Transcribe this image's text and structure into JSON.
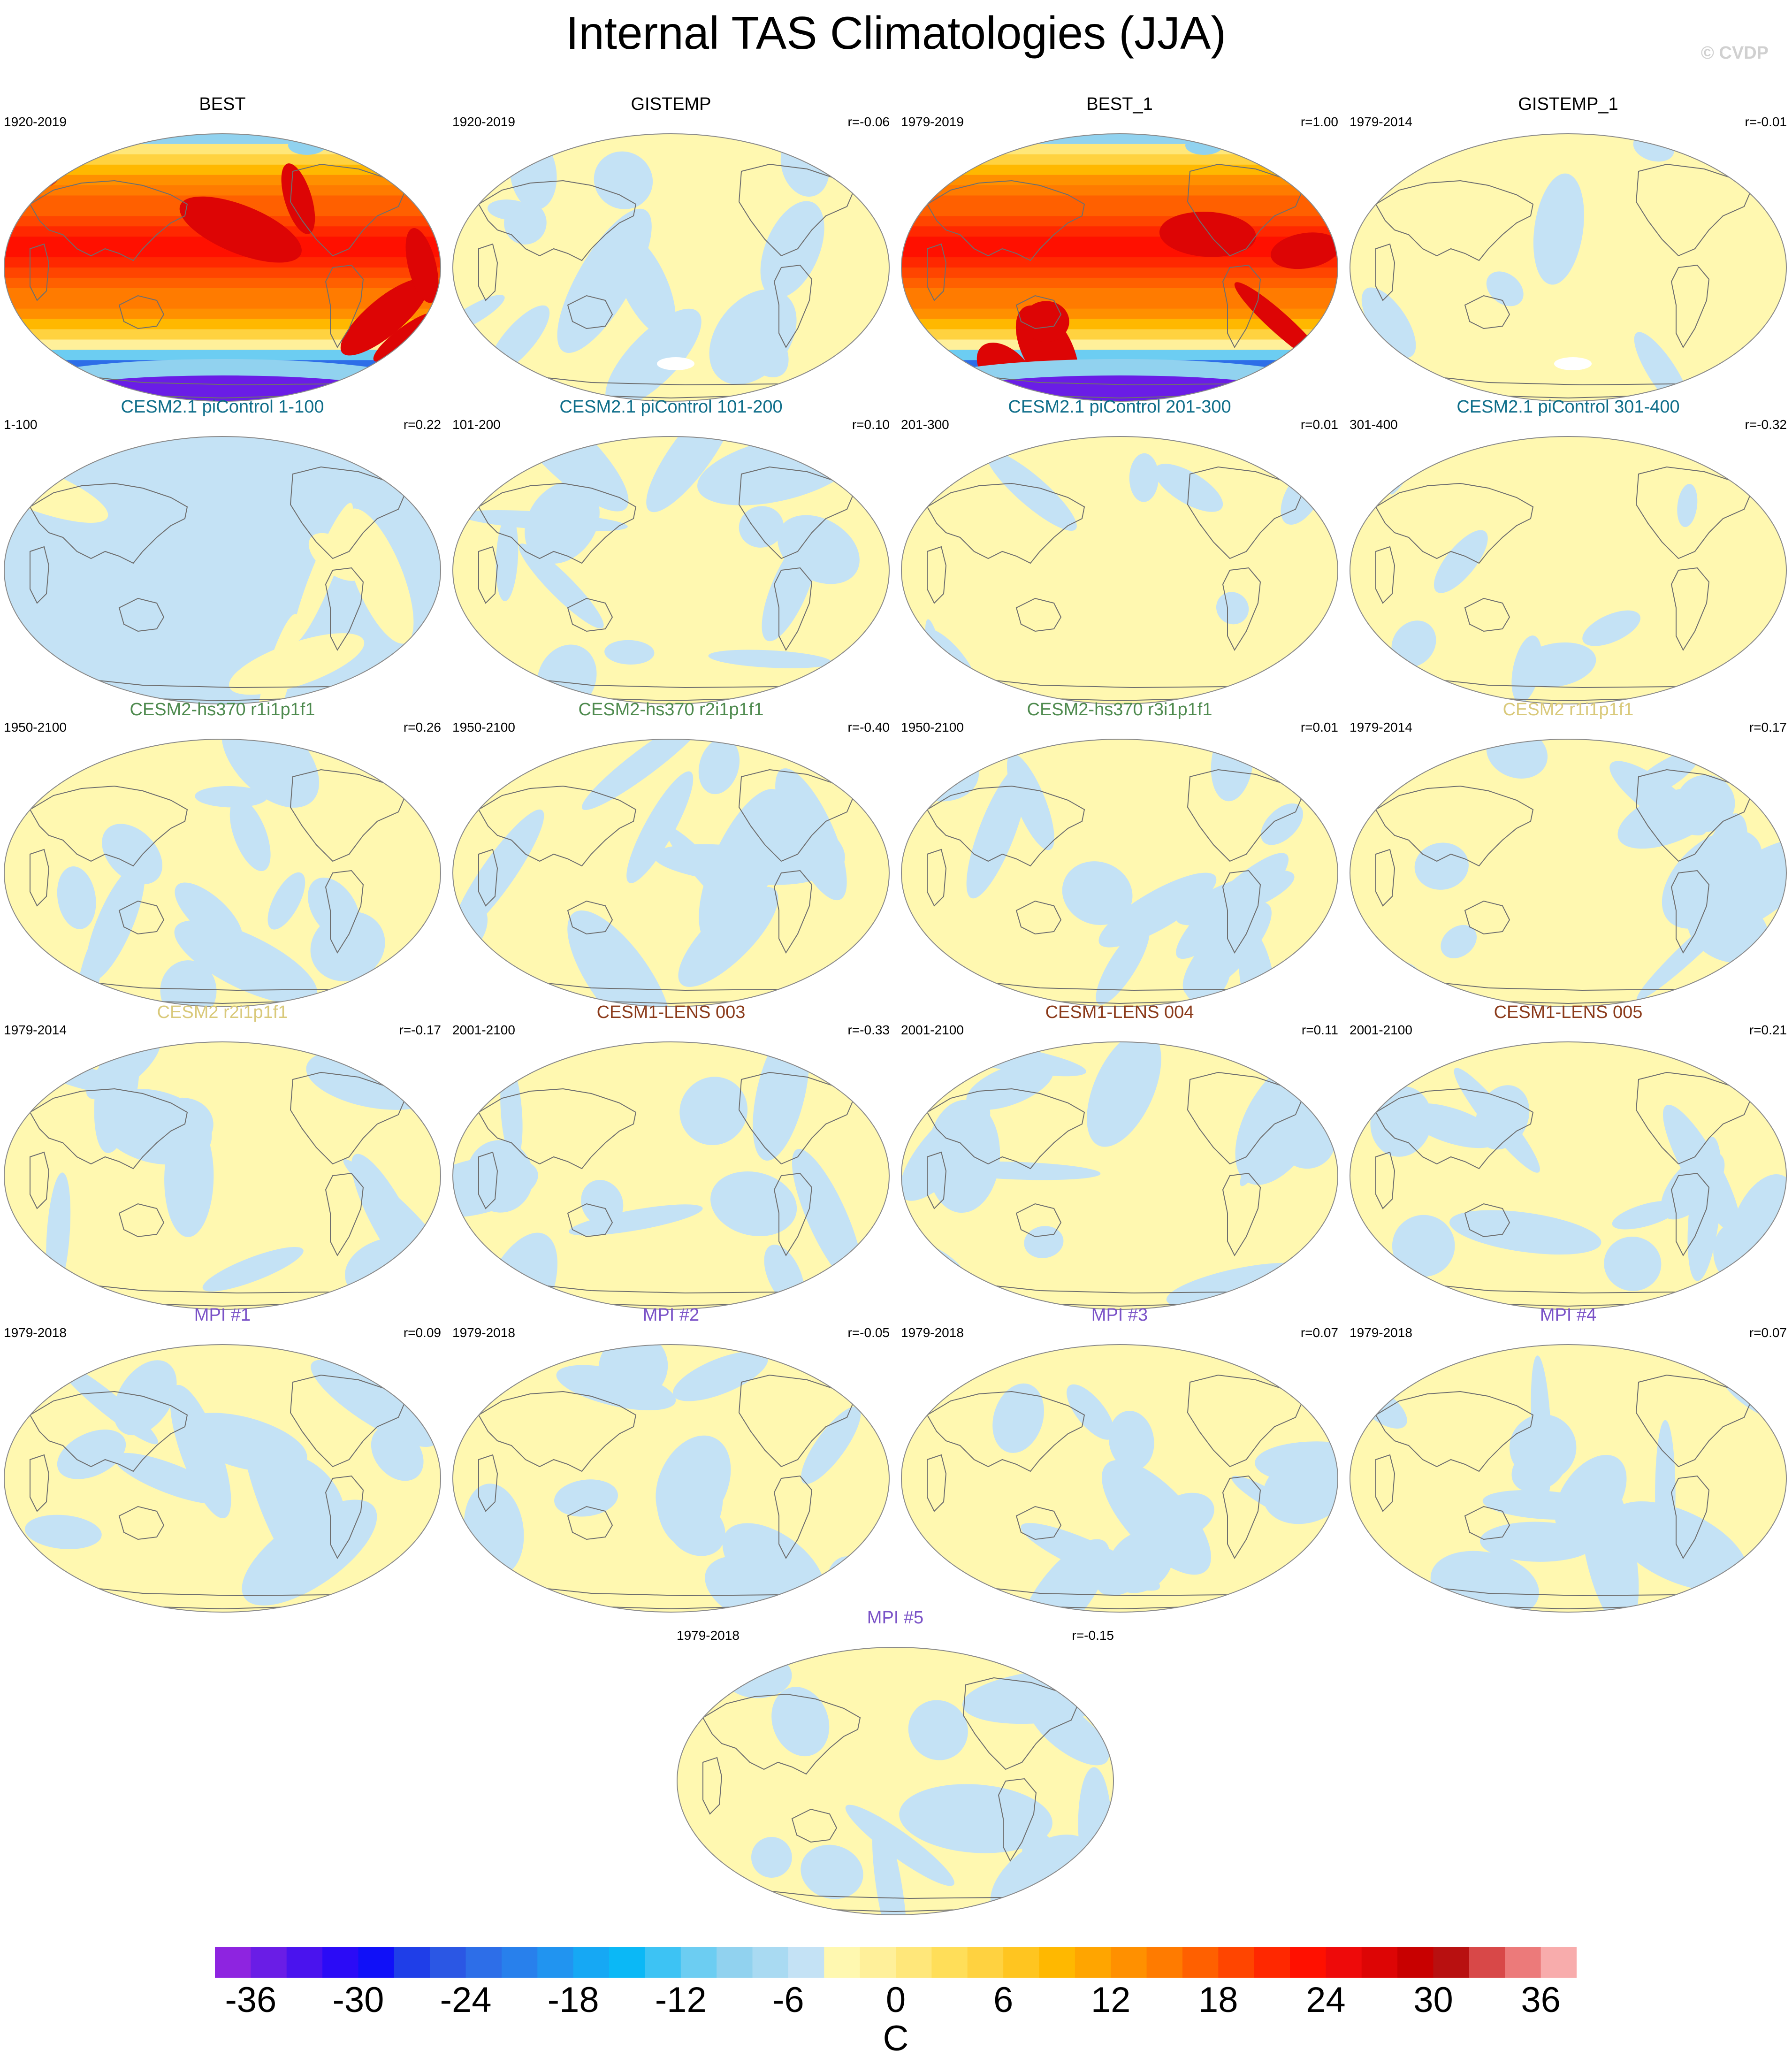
{
  "title": "Internal TAS Climatologies (JJA)",
  "credit": "© CVDP",
  "colors": {
    "land_outline": "#6e6e6e",
    "near_zero_pos": "#fff8b0",
    "near_zero_neg": "#c4e2f5",
    "missing": "#ffffff"
  },
  "panels": [
    {
      "title": "BEST",
      "period": "1920-2019",
      "corr": "",
      "title_color": "#000000",
      "style": "full",
      "seed": 1
    },
    {
      "title": "GISTEMP",
      "period": "1920-2019",
      "corr": "r=-0.06",
      "title_color": "#000000",
      "style": "anom",
      "seed": 2
    },
    {
      "title": "BEST_1",
      "period": "1979-2019",
      "corr": "r=1.00",
      "title_color": "#000000",
      "style": "full",
      "seed": 3
    },
    {
      "title": "GISTEMP_1",
      "period": "1979-2014",
      "corr": "r=-0.01",
      "title_color": "#000000",
      "style": "anom_light",
      "seed": 4
    },
    {
      "title": "CESM2.1 piControl 1-100",
      "period": "1-100",
      "corr": "r=0.22",
      "title_color": "#0f6e8a",
      "style": "anom_blue",
      "seed": 5
    },
    {
      "title": "CESM2.1 piControl 101-200",
      "period": "101-200",
      "corr": "r=0.10",
      "title_color": "#0f6e8a",
      "style": "anom",
      "seed": 6
    },
    {
      "title": "CESM2.1 piControl 201-300",
      "period": "201-300",
      "corr": "r=0.01",
      "title_color": "#0f6e8a",
      "style": "anom_light",
      "seed": 7
    },
    {
      "title": "CESM2.1 piControl 301-400",
      "period": "301-400",
      "corr": "r=-0.32",
      "title_color": "#0f6e8a",
      "style": "anom_light",
      "seed": 8
    },
    {
      "title": "CESM2-hs370 r1i1p1f1",
      "period": "1950-2100",
      "corr": "r=0.26",
      "title_color": "#4e8a4e",
      "style": "anom",
      "seed": 9
    },
    {
      "title": "CESM2-hs370 r2i1p1f1",
      "period": "1950-2100",
      "corr": "r=-0.40",
      "title_color": "#4e8a4e",
      "style": "anom",
      "seed": 10
    },
    {
      "title": "CESM2-hs370 r3i1p1f1",
      "period": "1950-2100",
      "corr": "r=0.01",
      "title_color": "#4e8a4e",
      "style": "anom",
      "seed": 11
    },
    {
      "title": "CESM2 r1i1p1f1",
      "period": "1979-2014",
      "corr": "r=0.17",
      "title_color": "#d9c97a",
      "style": "anom",
      "seed": 12
    },
    {
      "title": "CESM2 r2i1p1f1",
      "period": "1979-2014",
      "corr": "r=-0.17",
      "title_color": "#d9c97a",
      "style": "anom",
      "seed": 13
    },
    {
      "title": "CESM1-LENS 003",
      "period": "2001-2100",
      "corr": "r=-0.33",
      "title_color": "#8b3a1a",
      "style": "anom",
      "seed": 14
    },
    {
      "title": "CESM1-LENS 004",
      "period": "2001-2100",
      "corr": "r=0.11",
      "title_color": "#8b3a1a",
      "style": "anom",
      "seed": 15
    },
    {
      "title": "CESM1-LENS 005",
      "period": "2001-2100",
      "corr": "r=0.21",
      "title_color": "#8b3a1a",
      "style": "anom",
      "seed": 16
    },
    {
      "title": "MPI #1",
      "period": "1979-2018",
      "corr": "r=0.09",
      "title_color": "#7a52c7",
      "style": "anom",
      "seed": 17
    },
    {
      "title": "MPI #2",
      "period": "1979-2018",
      "corr": "r=-0.05",
      "title_color": "#7a52c7",
      "style": "anom",
      "seed": 18
    },
    {
      "title": "MPI #3",
      "period": "1979-2018",
      "corr": "r=0.07",
      "title_color": "#7a52c7",
      "style": "anom",
      "seed": 19
    },
    {
      "title": "MPI #4",
      "period": "1979-2018",
      "corr": "r=0.07",
      "title_color": "#7a52c7",
      "style": "anom",
      "seed": 20
    },
    {
      "title": "MPI #5",
      "period": "1979-2018",
      "corr": "r=-0.15",
      "title_color": "#7a52c7",
      "style": "anom",
      "seed": 21
    }
  ],
  "colorbar": {
    "colors": [
      "#8e24e0",
      "#6a1de6",
      "#4a13ee",
      "#2b0bf6",
      "#1010f8",
      "#1f3ee8",
      "#2b57e4",
      "#2d6ee8",
      "#2880ec",
      "#2194f0",
      "#16a8f4",
      "#0bb8f6",
      "#3dc3f4",
      "#6ccdf2",
      "#91d2ef",
      "#a9daf2",
      "#c4e2f5",
      "#fff8b0",
      "#fff09a",
      "#ffe77a",
      "#ffde59",
      "#ffd240",
      "#ffc520",
      "#ffb800",
      "#ffa500",
      "#ff9000",
      "#ff7b00",
      "#ff6000",
      "#ff4500",
      "#ff2800",
      "#ff1000",
      "#ee0a0a",
      "#dd0505",
      "#c80000",
      "#b81010",
      "#d84848",
      "#ec7a7a",
      "#f8acac"
    ],
    "ticks": [
      "-36",
      "-30",
      "-24",
      "-18",
      "-12",
      "-6",
      "0",
      "6",
      "12",
      "18",
      "24",
      "30",
      "36"
    ],
    "unit": "C"
  }
}
